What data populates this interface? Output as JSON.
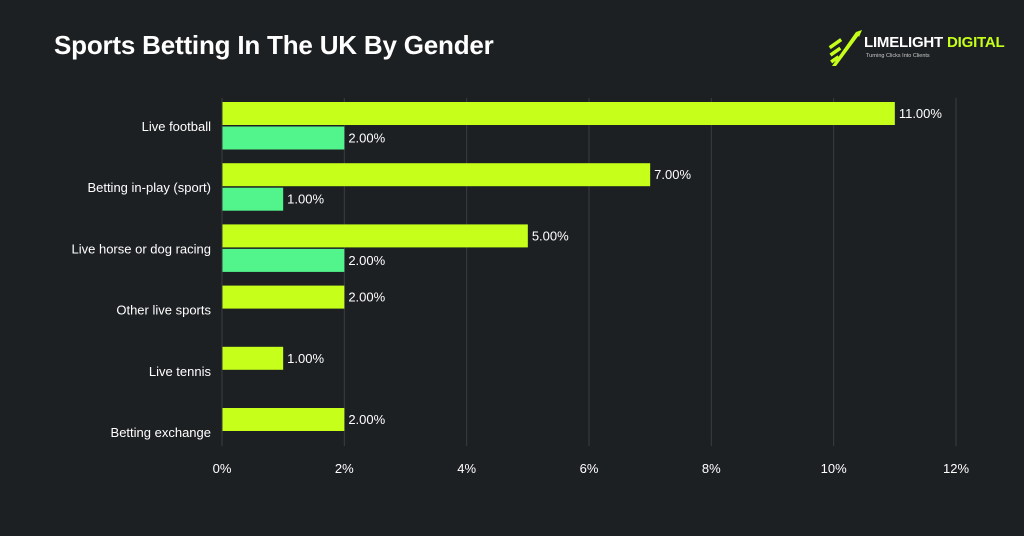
{
  "header": {
    "title": "Sports Betting In The UK By Gender"
  },
  "logo": {
    "name_part1": "LIMELIGHT",
    "name_part2": "DIGITAL",
    "tagline": "Turning Clicks Into Clients"
  },
  "colors": {
    "background": "#1d2023",
    "series_primary": "#c6ff1a",
    "series_secondary": "#52f58b",
    "gridline": "#3a3d41",
    "text": "#ffffff"
  },
  "chart_data": {
    "type": "bar",
    "orientation": "horizontal",
    "title": "Sports Betting In The UK By Gender",
    "categories": [
      "Live football",
      "Betting in-play (sport)",
      "Live horse or dog racing",
      "Other live sports",
      "Live tennis",
      "Betting exchange"
    ],
    "series": [
      {
        "values": [
          11,
          7,
          5,
          2,
          1,
          2
        ],
        "labels": [
          "11.00%",
          "7.00%",
          "5.00%",
          "2.00%",
          "1.00%",
          "2.00%"
        ],
        "color": "#c6ff1a"
      },
      {
        "values": [
          2,
          1,
          2,
          null,
          null,
          null
        ],
        "labels": [
          "2.00%",
          "1.00%",
          "2.00%",
          null,
          null,
          null
        ],
        "color": "#52f58b"
      }
    ],
    "xlim": [
      0,
      12
    ],
    "xticks": [
      "0%",
      "2%",
      "4%",
      "6%",
      "8%",
      "10%",
      "12%"
    ],
    "xlabel": "",
    "ylabel": "",
    "grid": "vertical",
    "legend": "none"
  }
}
